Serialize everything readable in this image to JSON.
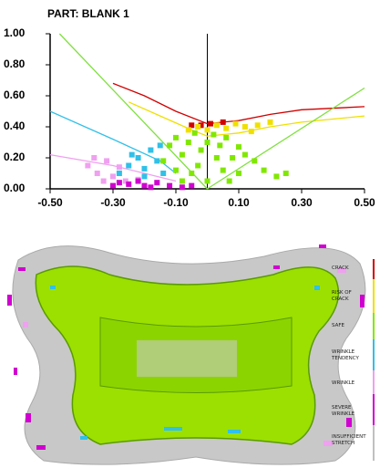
{
  "chart_data": {
    "type": "scatter",
    "title": "PART:  BLANK 1",
    "xlim": [
      -0.5,
      0.5
    ],
    "ylim": [
      0,
      1
    ],
    "xticks": [
      {
        "value": -0.5,
        "label": "-0.50"
      },
      {
        "value": -0.3,
        "label": "-0.30"
      },
      {
        "value": -0.1,
        "label": "-0.10"
      },
      {
        "value": 0.1,
        "label": "0.10"
      },
      {
        "value": 0.3,
        "label": "0.30"
      },
      {
        "value": 0.5,
        "label": "0.50"
      }
    ],
    "yticks": [
      {
        "value": 0,
        "label": "0.00"
      },
      {
        "value": 0.2,
        "label": "0.20"
      },
      {
        "value": 0.4,
        "label": "0.40"
      },
      {
        "value": 0.6,
        "label": "0.60"
      },
      {
        "value": 0.8,
        "label": "0.80"
      },
      {
        "value": 1,
        "label": "1.00"
      }
    ],
    "curves": [
      {
        "color": "#d00000",
        "x": [
          -0.3,
          -0.2,
          -0.1,
          0,
          0.1,
          0.2,
          0.3,
          0.5
        ],
        "values": [
          0.68,
          0.6,
          0.5,
          0.42,
          0.44,
          0.48,
          0.51,
          0.53
        ]
      },
      {
        "color": "#f0e000",
        "x": [
          -0.25,
          -0.15,
          -0.05,
          0,
          0.1,
          0.2,
          0.3,
          0.5
        ],
        "values": [
          0.56,
          0.47,
          0.38,
          0.34,
          0.36,
          0.4,
          0.43,
          0.47
        ]
      },
      {
        "color": "#80e040",
        "x": [
          -0.47,
          0
        ],
        "values": [
          1,
          0
        ]
      },
      {
        "color": "#80e040",
        "x": [
          0,
          0.5
        ],
        "values": [
          0,
          0.65
        ]
      },
      {
        "color": "#30c0e8",
        "x": [
          -0.5,
          -0.3,
          -0.15,
          -0.1
        ],
        "values": [
          0.5,
          0.32,
          0.18,
          0.1
        ]
      },
      {
        "color": "#f0a0f0",
        "x": [
          -0.5,
          -0.3,
          -0.1
        ],
        "values": [
          0.22,
          0.15,
          0.05
        ]
      }
    ],
    "series": [
      {
        "name": "CRACK",
        "color": "#d00000",
        "x": [
          -0.02,
          0.01,
          -0.05,
          0.05
        ],
        "values": [
          0.41,
          0.42,
          0.41,
          0.43
        ]
      },
      {
        "name": "RISK OF CRACK",
        "color": "#f0e000",
        "x": [
          -0.06,
          -0.03,
          0,
          0.03,
          0.06,
          0.09,
          0.12,
          0.16,
          0.2,
          0.14
        ],
        "values": [
          0.38,
          0.4,
          0.38,
          0.41,
          0.39,
          0.42,
          0.4,
          0.41,
          0.43,
          0.37
        ]
      },
      {
        "name": "SAFE",
        "color": "#80e800",
        "x": [
          -0.12,
          -0.1,
          -0.08,
          -0.06,
          -0.04,
          -0.02,
          0,
          0.02,
          0.04,
          0.06,
          0.08,
          0.1,
          0.12,
          0.15,
          0.18,
          0.22,
          0.25,
          -0.14,
          -0.1,
          -0.05,
          0,
          0.05,
          0.1,
          -0.08,
          0.03,
          -0.03,
          0.07
        ],
        "values": [
          0.28,
          0.33,
          0.22,
          0.3,
          0.36,
          0.25,
          0.3,
          0.35,
          0.28,
          0.33,
          0.2,
          0.27,
          0.22,
          0.18,
          0.12,
          0.08,
          0.1,
          0.18,
          0.12,
          0.1,
          0.05,
          0.12,
          0.1,
          0.05,
          0.2,
          0.15,
          0.05
        ]
      },
      {
        "name": "WRINKLE TENDENCY",
        "color": "#30c0e8",
        "x": [
          -0.28,
          -0.25,
          -0.22,
          -0.2,
          -0.18,
          -0.16,
          -0.14,
          -0.2,
          -0.24,
          -0.15
        ],
        "values": [
          0.1,
          0.15,
          0.2,
          0.13,
          0.25,
          0.18,
          0.1,
          0.08,
          0.22,
          0.28
        ]
      },
      {
        "name": "WRINKLE",
        "color": "#f0a0f0",
        "x": [
          -0.38,
          -0.35,
          -0.32,
          -0.3,
          -0.28,
          -0.26,
          -0.33,
          -0.36,
          -0.22
        ],
        "values": [
          0.15,
          0.1,
          0.18,
          0.08,
          0.14,
          0.05,
          0.05,
          0.2,
          0.06
        ]
      },
      {
        "name": "SEVERE WRINKLE",
        "color": "#d000d0",
        "x": [
          -0.3,
          -0.25,
          -0.2,
          -0.16,
          -0.12,
          -0.08,
          -0.22,
          -0.18,
          -0.28,
          -0.05
        ],
        "values": [
          0.02,
          0.03,
          0.02,
          0.04,
          0.02,
          0.01,
          0.05,
          0.01,
          0.04,
          0.02
        ]
      },
      {
        "name": "INSUFFICIENT STRETCH",
        "color": "#c0c0c0",
        "x": [],
        "values": []
      }
    ]
  }
}
